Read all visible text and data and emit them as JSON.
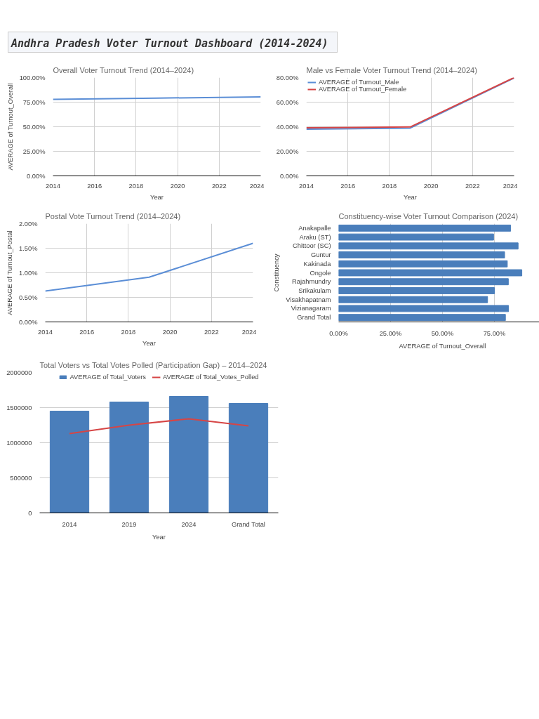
{
  "chart_data": [
    {
      "type": "other",
      "title": "Andhra Pradesh Voter Turnout Dashboard (2014-2024)"
    },
    {
      "type": "line",
      "title": "Overall Voter Turnout Trend (2014–2024)",
      "xlabel": "Year",
      "ylabel": "AVERAGE of Turnout_Overall",
      "x": [
        2014,
        2019,
        2024
      ],
      "series": [
        {
          "color": "#5b8ed6",
          "values": [
            77.9,
            79.1,
            80.4
          ]
        }
      ],
      "xlim": [
        2014,
        2024
      ],
      "xticks": [
        2014,
        2016,
        2018,
        2020,
        2022,
        2024
      ],
      "ylim": [
        0,
        100
      ],
      "yticks": [
        {
          "value": 0,
          "label": "0.00%"
        },
        {
          "value": 25,
          "label": "25.00%"
        },
        {
          "value": 50,
          "label": "50.00%"
        },
        {
          "value": 75,
          "label": "75.00%"
        },
        {
          "value": 100,
          "label": "100.00%"
        }
      ],
      "grid": true
    },
    {
      "type": "line",
      "title": "Male vs Female Voter Turnout Trend (2014–2024)",
      "xlabel": "Year",
      "x": [
        2014,
        2019,
        2024
      ],
      "series": [
        {
          "name": "AVERAGE of Turnout_Male",
          "color": "#5b8ed6",
          "values": [
            38.0,
            38.9,
            79.6
          ]
        },
        {
          "name": "AVERAGE of Turnout_Female",
          "color": "#d64545",
          "values": [
            39.1,
            39.8,
            80.0
          ]
        }
      ],
      "xlim": [
        2014,
        2024
      ],
      "xticks": [
        2014,
        2016,
        2018,
        2020,
        2022,
        2024
      ],
      "ylim": [
        0,
        80
      ],
      "yticks": [
        {
          "value": 0,
          "label": "0.00%"
        },
        {
          "value": 20,
          "label": "20.00%"
        },
        {
          "value": 40,
          "label": "40.00%"
        },
        {
          "value": 60,
          "label": "60.00%"
        },
        {
          "value": 80,
          "label": "80.00%"
        }
      ],
      "grid": true,
      "legend": "top left"
    },
    {
      "type": "line",
      "title": "Postal Vote Turnout Trend (2014–2024)",
      "xlabel": "Year",
      "ylabel": "AVERAGE of Turnout_Postal",
      "x": [
        2014,
        2019,
        2024
      ],
      "series": [
        {
          "color": "#5b8ed6",
          "values": [
            0.63,
            0.91,
            1.6
          ]
        }
      ],
      "xlim": [
        2014,
        2024
      ],
      "xticks": [
        2014,
        2016,
        2018,
        2020,
        2022,
        2024
      ],
      "ylim": [
        0,
        2
      ],
      "yticks": [
        {
          "value": 0,
          "label": "0.00%"
        },
        {
          "value": 0.5,
          "label": "0.50%"
        },
        {
          "value": 1,
          "label": "1.00%"
        },
        {
          "value": 1.5,
          "label": "1.50%"
        },
        {
          "value": 2,
          "label": "2.00%"
        }
      ],
      "grid": true
    },
    {
      "type": "bar",
      "orientation": "horizontal",
      "title": "Constituency-wise Voter Turnout Comparison (2024)",
      "xlabel": "AVERAGE of Turnout_Overall",
      "ylabel": "Constituency",
      "categories": [
        "Anakapalle",
        "Araku (ST)",
        "Chittoor (SC)",
        "Guntur",
        "Kakinada",
        "Ongole",
        "Rajahmundry",
        "Srikakulam",
        "Visakhapatnam",
        "Vizianagaram",
        "Grand Total"
      ],
      "values": [
        82.8,
        74.6,
        86.4,
        79.9,
        81.2,
        88.2,
        81.7,
        75.0,
        71.7,
        81.8,
        80.3
      ],
      "color": "#4a7ebb",
      "xlim": [
        0,
        100
      ],
      "xticks": [
        {
          "value": 0,
          "label": "0.00%"
        },
        {
          "value": 25,
          "label": "25.00%"
        },
        {
          "value": 50,
          "label": "50.00%"
        },
        {
          "value": 75,
          "label": "75.00%"
        }
      ],
      "grid": "x"
    },
    {
      "type": "bar",
      "title": "Total Voters vs Total Votes Polled (Participation Gap) – 2014–2024",
      "xlabel": "Year",
      "categories": [
        "2014",
        "2019",
        "2024",
        "Grand Total"
      ],
      "series": [
        {
          "name": "AVERAGE of Total_Voters",
          "color": "#4a7ebb",
          "values": [
            1450000,
            1580000,
            1660000,
            1560000
          ]
        },
        {
          "name": "AVERAGE of Total_Votes_Polled",
          "type": "line",
          "color": "#d64545",
          "values": [
            1130000,
            1250000,
            1340000,
            1240000
          ]
        }
      ],
      "ylim": [
        0,
        2000000
      ],
      "yticks": [
        0,
        500000,
        1000000,
        1500000,
        2000000
      ],
      "grid": "y",
      "legend": "top"
    }
  ]
}
